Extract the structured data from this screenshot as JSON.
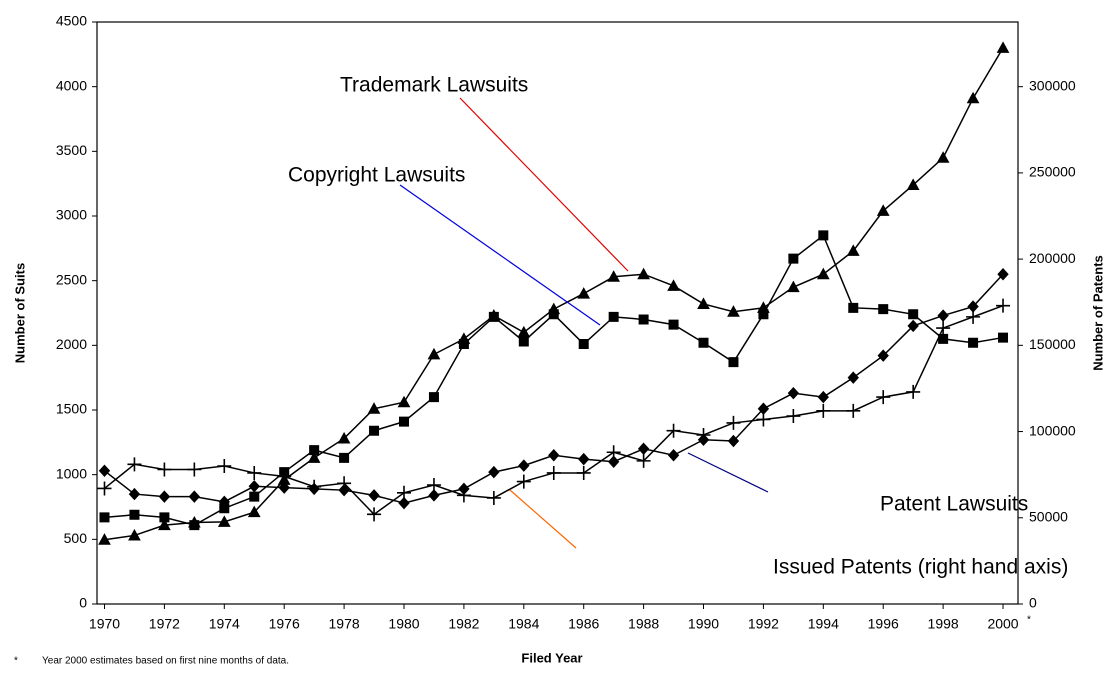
{
  "chart_data": {
    "type": "line",
    "x_label": "Filed Year",
    "y_label": "Number of Suits",
    "y2_label": "Number of Patents",
    "x": [
      1970,
      1971,
      1972,
      1973,
      1974,
      1975,
      1976,
      1977,
      1978,
      1979,
      1980,
      1981,
      1982,
      1983,
      1984,
      1985,
      1986,
      1987,
      1988,
      1989,
      1990,
      1991,
      1992,
      1993,
      1994,
      1995,
      1996,
      1997,
      1998,
      1999,
      2000
    ],
    "xlim": [
      1969.75,
      2000.5
    ],
    "xticks": [
      1970,
      1972,
      1974,
      1976,
      1978,
      1980,
      1982,
      1984,
      1986,
      1988,
      1990,
      1992,
      1994,
      1996,
      1998,
      2000
    ],
    "ylim": [
      0,
      4500
    ],
    "yticks": [
      0,
      500,
      1000,
      1500,
      2000,
      2500,
      3000,
      3500,
      4000,
      4500
    ],
    "y2lim": [
      0,
      337500
    ],
    "y2ticks": [
      0,
      50000,
      100000,
      150000,
      200000,
      250000,
      300000
    ],
    "footnote_marker": "*",
    "footnote": "Year 2000 estimates based on first nine months of data.",
    "series": [
      {
        "name": "Trademark Lawsuits",
        "color": "#000000",
        "marker": "triangle",
        "values": [
          497,
          530,
          610,
          630,
          635,
          710,
          960,
          1130,
          1280,
          1510,
          1560,
          1930,
          2050,
          2230,
          2100,
          2280,
          2400,
          2530,
          2550,
          2460,
          2320,
          2260,
          2290,
          2450,
          2550,
          2730,
          3040,
          3240,
          3450,
          3910,
          4300
        ]
      },
      {
        "name": "Copyright Lawsuits",
        "color": "#000000",
        "marker": "square",
        "values": [
          670,
          690,
          670,
          610,
          740,
          830,
          1020,
          1190,
          1130,
          1340,
          1410,
          1600,
          2010,
          2220,
          2030,
          2240,
          2010,
          2220,
          2200,
          2160,
          2020,
          1870,
          2240,
          2670,
          2850,
          2290,
          2280,
          2240,
          2050,
          2020,
          2060
        ]
      },
      {
        "name": "Patent Lawsuits",
        "color": "#000000",
        "marker": "diamond",
        "values": [
          1030,
          850,
          830,
          830,
          790,
          910,
          900,
          890,
          880,
          840,
          780,
          840,
          890,
          1020,
          1070,
          1150,
          1120,
          1100,
          1200,
          1150,
          1270,
          1260,
          1510,
          1630,
          1600,
          1750,
          1920,
          2150,
          2230,
          2300,
          2550
        ]
      },
      {
        "name": "Issued Patents (right hand axis)",
        "color": "#000000",
        "marker": "plus",
        "axis": "y2",
        "values": [
          67000,
          81000,
          78000,
          78000,
          80000,
          76000,
          74000,
          68000,
          70000,
          52000,
          64500,
          69000,
          63000,
          61500,
          71000,
          76000,
          76000,
          88000,
          83000,
          100500,
          98000,
          105000,
          107000,
          109000,
          112000,
          112000,
          120000,
          123000,
          160000,
          166500,
          173000
        ]
      }
    ],
    "annotation_colors": [
      "#e00000",
      "#0000e0",
      "#000080",
      "#ff6600"
    ]
  }
}
